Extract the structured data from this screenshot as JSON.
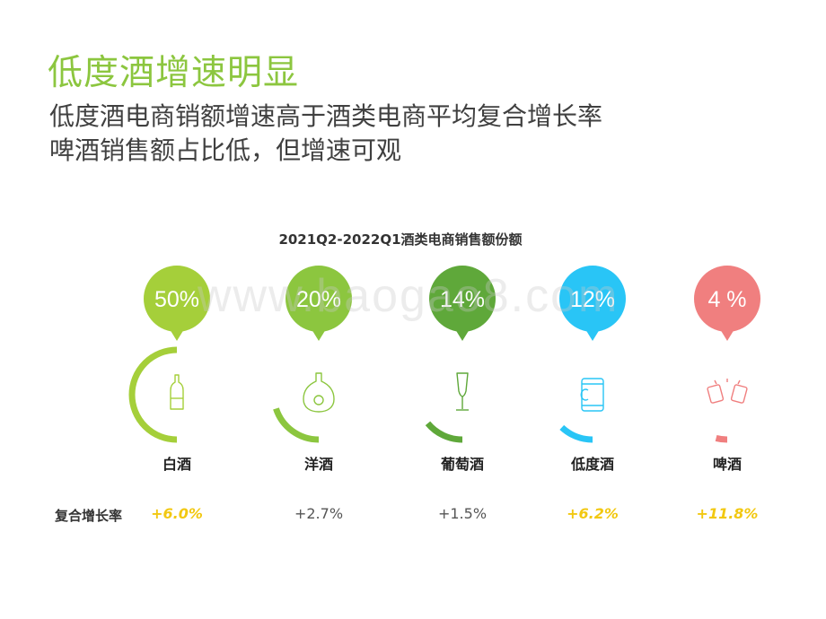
{
  "header": {
    "title": "低度酒增速明显",
    "line1": "低度酒电商销额增速高于酒类电商平均复合增长率",
    "line2": "啤酒销售额占比低，但增速可观"
  },
  "watermark": "www.baogao8.com",
  "row_label": "复合增长率",
  "chart_data": {
    "type": "gauge",
    "title": "2021Q2-2022Q1酒类电商销售额份额",
    "categories": [
      "白酒",
      "洋酒",
      "葡萄酒",
      "低度酒",
      "啤酒"
    ],
    "share_labels": [
      "50%",
      "20%",
      "14%",
      "12%",
      "4 %"
    ],
    "values": [
      50,
      20,
      14,
      12,
      4
    ],
    "growth_labels": [
      "+6.0%",
      "+2.7%",
      "+1.5%",
      "+6.2%",
      "+11.8%"
    ],
    "growth_values": [
      6.0,
      2.7,
      1.5,
      6.2,
      11.8
    ],
    "growth_highlight": [
      true,
      false,
      false,
      true,
      true
    ],
    "colors": [
      "#a5cf3a",
      "#8cc63f",
      "#5fa83a",
      "#29c5f6",
      "#f07f7f"
    ],
    "icons": [
      "baijiu-bottle-icon",
      "cognac-bottle-icon",
      "wine-glass-icon",
      "can-icon",
      "beer-cheers-icon"
    ]
  }
}
